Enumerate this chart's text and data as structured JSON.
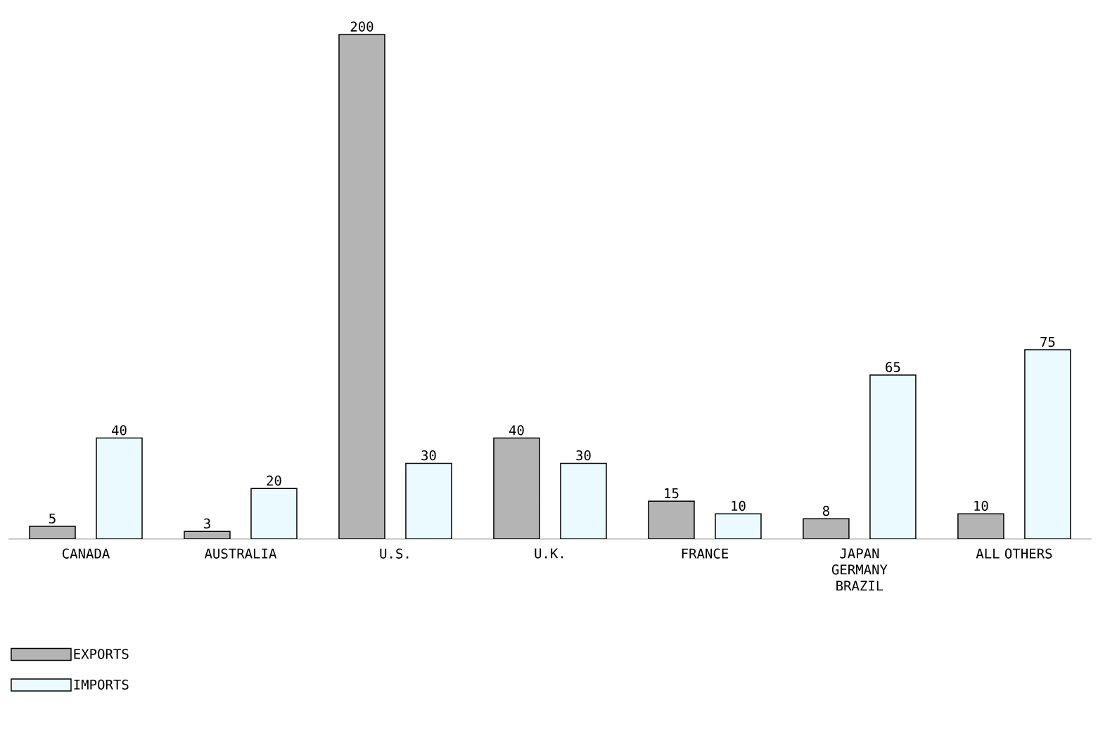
{
  "chart_data": {
    "type": "bar",
    "categories": [
      "CANADA",
      "AUSTRALIA",
      "U.S.",
      "U.K.",
      "FRANCE",
      "JAPAN GERMANY BRAZIL",
      "ALL OTHERS"
    ],
    "series": [
      {
        "name": "EXPORTS",
        "color": "#b4b4b4",
        "values": [
          5,
          3,
          200,
          40,
          15,
          8,
          10
        ]
      },
      {
        "name": "IMPORTS",
        "color": "#eafaff",
        "values": [
          40,
          20,
          30,
          30,
          10,
          65,
          75
        ]
      }
    ],
    "data_labels": true,
    "legend": "bottom left"
  }
}
